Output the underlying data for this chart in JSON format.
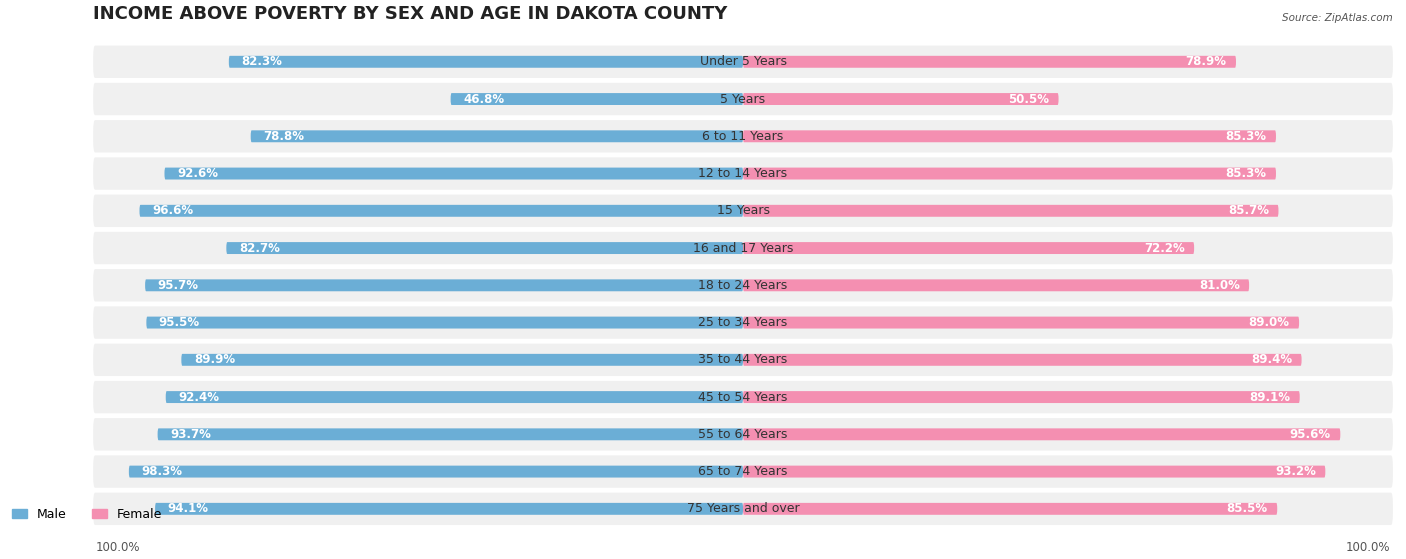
{
  "title": "INCOME ABOVE POVERTY BY SEX AND AGE IN DAKOTA COUNTY",
  "source": "Source: ZipAtlas.com",
  "categories": [
    "Under 5 Years",
    "5 Years",
    "6 to 11 Years",
    "12 to 14 Years",
    "15 Years",
    "16 and 17 Years",
    "18 to 24 Years",
    "25 to 34 Years",
    "35 to 44 Years",
    "45 to 54 Years",
    "55 to 64 Years",
    "65 to 74 Years",
    "75 Years and over"
  ],
  "male_values": [
    82.3,
    46.8,
    78.8,
    92.6,
    96.6,
    82.7,
    95.7,
    95.5,
    89.9,
    92.4,
    93.7,
    98.3,
    94.1
  ],
  "female_values": [
    78.9,
    50.5,
    85.3,
    85.3,
    85.7,
    72.2,
    81.0,
    89.0,
    89.4,
    89.1,
    95.6,
    93.2,
    85.5
  ],
  "male_color": "#6baed6",
  "male_color_light": "#bdd7ee",
  "female_color": "#f48fb1",
  "female_color_light": "#fce4ec",
  "bar_bg_color": "#eeeeee",
  "title_fontsize": 13,
  "label_fontsize": 9,
  "value_fontsize": 8.5,
  "axis_max": 100.0,
  "legend_male": "Male",
  "legend_female": "Female"
}
